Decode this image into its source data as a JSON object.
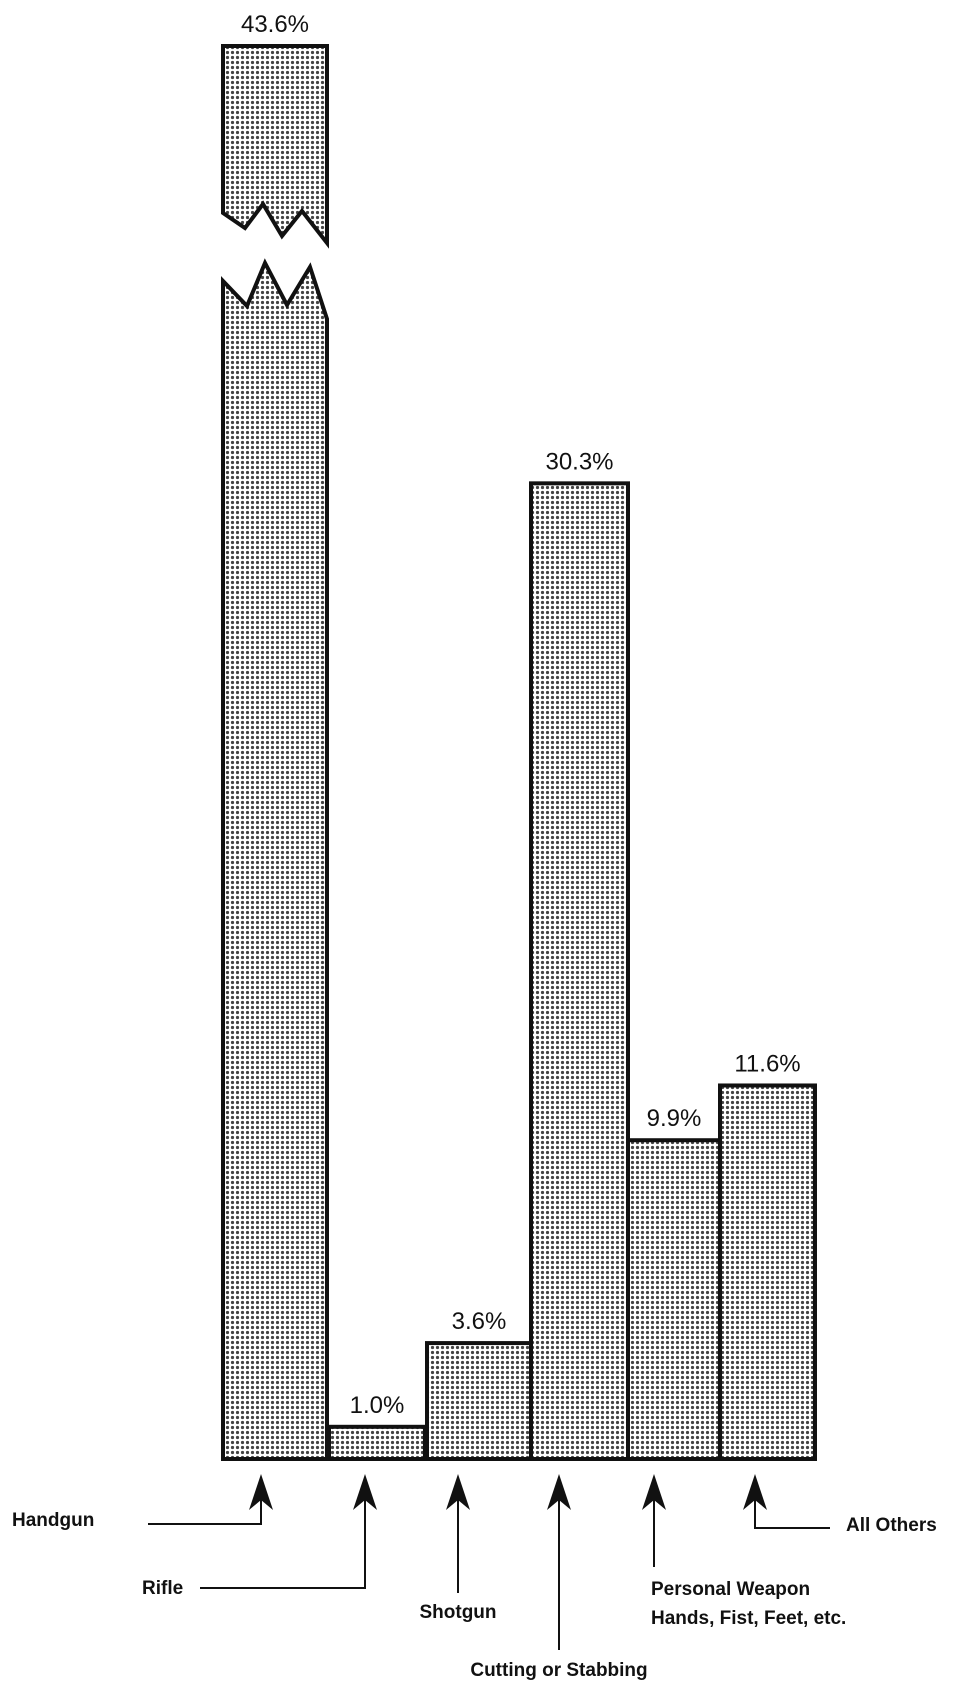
{
  "chart_data": {
    "type": "bar",
    "title": "",
    "xlabel": "",
    "ylabel": "",
    "categories": [
      "Handgun",
      "Rifle",
      "Shotgun",
      "Cutting or Stabbing",
      "Personal Weapon Hands, Fist, Feet, etc.",
      "All Others"
    ],
    "category_lines": [
      [
        "Handgun"
      ],
      [
        "Rifle"
      ],
      [
        "Shotgun"
      ],
      [
        "Cutting or Stabbing"
      ],
      [
        "Personal Weapon",
        "Hands, Fist, Feet, etc."
      ],
      [
        "All Others"
      ]
    ],
    "values": [
      43.6,
      1.0,
      3.6,
      30.3,
      9.9,
      11.6
    ],
    "value_labels": [
      "43.6%",
      "1.0%",
      "3.6%",
      "30.3%",
      "9.9%",
      "11.6%"
    ],
    "unit": "%",
    "ylim": [
      0,
      43.6
    ],
    "axis_break": {
      "bar_index": 0
    },
    "grid": false,
    "legend": "none",
    "colors": {
      "outline": "#111111",
      "pattern_dot": "#444444",
      "background": "#ffffff"
    }
  }
}
